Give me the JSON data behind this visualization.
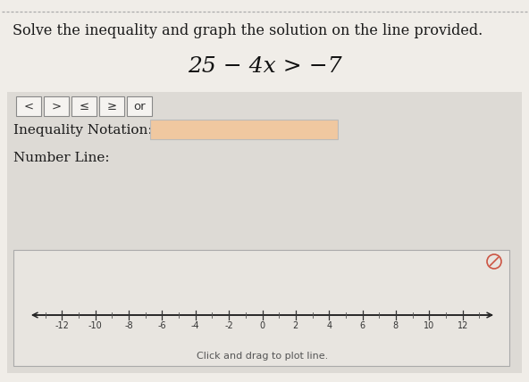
{
  "title_text": "Solve the inequality and graph the solution on the line provided.",
  "equation": "25 − 4x > −7",
  "page_bg": "#f0ede8",
  "panel_bg": "#dddad5",
  "dashed_color": "#aaaaaa",
  "button_labels": [
    "<",
    ">",
    "≤",
    "≥",
    "or"
  ],
  "inequality_label": "Inequality Notation:",
  "number_line_label": "Number Line:",
  "number_line_caption": "Click and drag to plot line.",
  "input_box_color": "#f0c8a0",
  "tick_labels": [
    "-12",
    "-10",
    "-8",
    "-6",
    "-4",
    "-2",
    "0",
    "2",
    "4",
    "6",
    "8",
    "10",
    "12"
  ],
  "tick_values": [
    -12,
    -10,
    -8,
    -6,
    -4,
    -2,
    0,
    2,
    4,
    6,
    8,
    10,
    12
  ],
  "no_symbol_color": "#cc5544"
}
